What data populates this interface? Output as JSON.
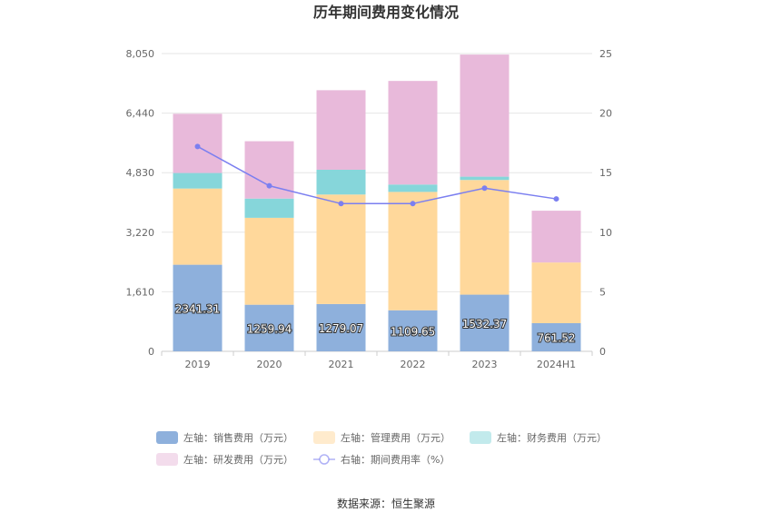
{
  "chart_data": {
    "type": "bar",
    "title": "历年期间费用变化情况",
    "categories": [
      "2019",
      "2020",
      "2021",
      "2022",
      "2023",
      "2024H1"
    ],
    "series": [
      {
        "name": "左轴：销售费用（万元）",
        "axis": "left",
        "type": "bar",
        "stack": "total",
        "color": "#8eb0dc",
        "values": [
          2341.31,
          1259.94,
          1279.07,
          1109.65,
          1532.37,
          761.52
        ],
        "labels_shown": true
      },
      {
        "name": "左轴：管理费用（万元）",
        "axis": "left",
        "type": "bar",
        "stack": "total",
        "color": "#ffd89b",
        "values": [
          2060,
          2350,
          2960,
          3200,
          3100,
          1640
        ]
      },
      {
        "name": "左轴：财务费用（万元）",
        "axis": "left",
        "type": "bar",
        "stack": "total",
        "color": "#86d6da",
        "values": [
          420,
          520,
          670,
          200,
          90,
          0
        ]
      },
      {
        "name": "左轴：研发费用（万元）",
        "axis": "left",
        "type": "bar",
        "stack": "total",
        "color": "#e8b9da",
        "values": [
          1600,
          1550,
          2150,
          2800,
          3300,
          1400
        ]
      },
      {
        "name": "右轴：期间费用率（%）",
        "axis": "right",
        "type": "line",
        "color": "#7b7ff0",
        "values": [
          17.2,
          13.9,
          12.4,
          12.4,
          13.7,
          12.8
        ]
      }
    ],
    "left_axis": {
      "ylim": [
        0,
        8050
      ],
      "ticks": [
        "0",
        "1,610",
        "3,220",
        "4,830",
        "6,440",
        "8,050"
      ],
      "tick_values": [
        0,
        1610,
        3220,
        4830,
        6440,
        8050
      ]
    },
    "right_axis": {
      "ylim": [
        0,
        25
      ],
      "ticks": [
        "0",
        "5",
        "10",
        "15",
        "20",
        "25"
      ],
      "tick_values": [
        0,
        5,
        10,
        15,
        20,
        25
      ]
    },
    "grid": true,
    "legend_position": "bottom"
  },
  "source_text": "数据来源：恒生聚源"
}
